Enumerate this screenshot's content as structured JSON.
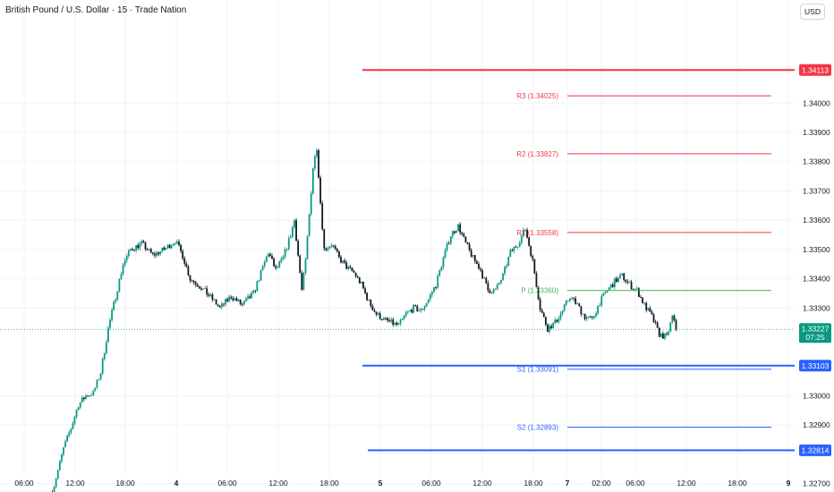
{
  "header": {
    "title": "British Pound / U.S. Dollar · 15 · Trade Nation",
    "currency_button": "USD"
  },
  "chart_data": {
    "type": "candlestick",
    "price_axis": {
      "ticks": [
        "1.34000",
        "1.33900",
        "1.33800",
        "1.33700",
        "1.33600",
        "1.33500",
        "1.33400",
        "1.33300",
        "1.33000",
        "1.32900",
        "1.32700"
      ],
      "current_price": "1.33227",
      "countdown": "07:25"
    },
    "time_axis": {
      "ticks": [
        "06:00",
        "12:00",
        "18:00",
        "4",
        "06:00",
        "12:00",
        "18:00",
        "5",
        "06:00",
        "12:00",
        "18:00",
        "7",
        "02:00",
        "06:00",
        "12:00",
        "18:00",
        "9"
      ]
    },
    "horizontal_levels": [
      {
        "price": 1.34113,
        "label": "1.34113",
        "color": "#f23645"
      },
      {
        "price": 1.33103,
        "label": "1.33103",
        "color": "#2962ff"
      },
      {
        "price": 1.32814,
        "label": "1.32814",
        "color": "#2962ff"
      }
    ],
    "pivots": [
      {
        "name": "R3",
        "price": 1.34025,
        "label": "R3 (1.34025)",
        "color": "#f23645"
      },
      {
        "name": "R2",
        "price": 1.33827,
        "label": "R2 (1.33827)",
        "color": "#f23645"
      },
      {
        "name": "R1",
        "price": 1.33558,
        "label": "R1 (1.33558)",
        "color": "#f23645"
      },
      {
        "name": "P",
        "price": 1.3336,
        "label": "P (1.33360)",
        "color": "#4caf50"
      },
      {
        "name": "S1",
        "price": 1.33091,
        "label": "S1 (1.33091)",
        "color": "#2962ff"
      },
      {
        "name": "S2",
        "price": 1.32893,
        "label": "S2 (1.32893)",
        "color": "#2962ff"
      }
    ],
    "close_path": [
      [
        0,
        1.3267
      ],
      [
        6,
        1.3282
      ],
      [
        10,
        1.3289
      ],
      [
        14,
        1.3297
      ],
      [
        18,
        1.33
      ],
      [
        22,
        1.3301
      ],
      [
        26,
        1.3308
      ],
      [
        30,
        1.3323
      ],
      [
        34,
        1.3334
      ],
      [
        38,
        1.3345
      ],
      [
        42,
        1.335
      ],
      [
        48,
        1.3352
      ],
      [
        54,
        1.3348
      ],
      [
        60,
        1.335
      ],
      [
        66,
        1.3353
      ],
      [
        70,
        1.3348
      ],
      [
        74,
        1.334
      ],
      [
        80,
        1.3337
      ],
      [
        86,
        1.3333
      ],
      [
        90,
        1.333
      ],
      [
        96,
        1.3334
      ],
      [
        102,
        1.3331
      ],
      [
        108,
        1.3335
      ],
      [
        112,
        1.3342
      ],
      [
        116,
        1.3349
      ],
      [
        120,
        1.3343
      ],
      [
        124,
        1.3347
      ],
      [
        128,
        1.3355
      ],
      [
        130,
        1.336
      ],
      [
        132,
        1.3348
      ],
      [
        134,
        1.3336
      ],
      [
        136,
        1.3346
      ],
      [
        138,
        1.3362
      ],
      [
        140,
        1.3378
      ],
      [
        142,
        1.3385
      ],
      [
        144,
        1.3366
      ],
      [
        146,
        1.335
      ],
      [
        150,
        1.3352
      ],
      [
        154,
        1.3347
      ],
      [
        158,
        1.3344
      ],
      [
        162,
        1.3342
      ],
      [
        166,
        1.3338
      ],
      [
        170,
        1.3332
      ],
      [
        174,
        1.3328
      ],
      [
        178,
        1.3326
      ],
      [
        182,
        1.3325
      ],
      [
        186,
        1.3324
      ],
      [
        190,
        1.3328
      ],
      [
        194,
        1.333
      ],
      [
        198,
        1.3329
      ],
      [
        202,
        1.3333
      ],
      [
        206,
        1.3338
      ],
      [
        210,
        1.3347
      ],
      [
        214,
        1.3355
      ],
      [
        218,
        1.3358
      ],
      [
        222,
        1.3352
      ],
      [
        226,
        1.3347
      ],
      [
        230,
        1.3343
      ],
      [
        234,
        1.3336
      ],
      [
        238,
        1.3336
      ],
      [
        242,
        1.3341
      ],
      [
        246,
        1.3349
      ],
      [
        250,
        1.3352
      ],
      [
        254,
        1.3357
      ],
      [
        258,
        1.3346
      ],
      [
        262,
        1.333
      ],
      [
        266,
        1.3323
      ],
      [
        270,
        1.3325
      ],
      [
        274,
        1.3329
      ],
      [
        278,
        1.3334
      ],
      [
        282,
        1.3331
      ],
      [
        286,
        1.3327
      ],
      [
        290,
        1.3326
      ],
      [
        294,
        1.3332
      ],
      [
        298,
        1.3336
      ],
      [
        302,
        1.3339
      ],
      [
        306,
        1.3341
      ],
      [
        310,
        1.3338
      ],
      [
        314,
        1.3336
      ],
      [
        318,
        1.3331
      ],
      [
        322,
        1.3327
      ],
      [
        326,
        1.3321
      ],
      [
        330,
        1.332
      ],
      [
        333,
        1.3327
      ],
      [
        335,
        1.3323
      ]
    ]
  },
  "colors": {
    "up": "#089981",
    "down": "#131722",
    "current_price": "#089981"
  }
}
